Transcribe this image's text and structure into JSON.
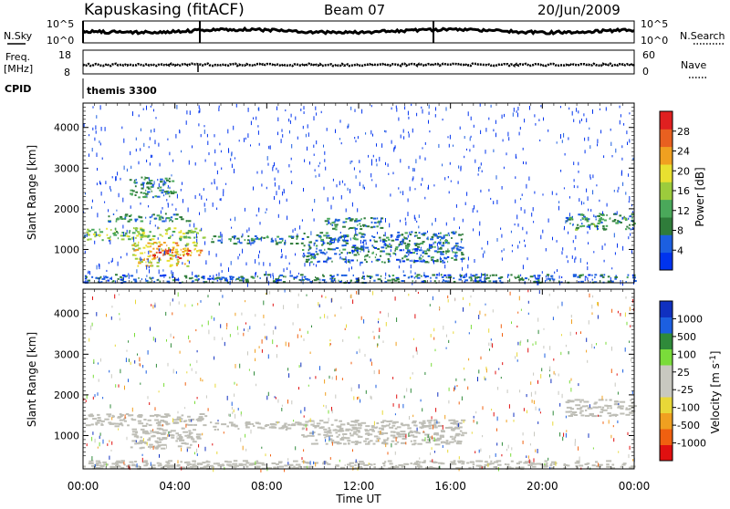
{
  "header": {
    "station": "Kapuskasing (fitACF)",
    "beam": "Beam 07",
    "date": "20/Jun/2009"
  },
  "strip_panels": {
    "nsky_label": "N.Sky",
    "nsky_ticks": [
      "10^5",
      "10^0"
    ],
    "nsearch_label": "N.Search",
    "nsearch_ticks": [
      "10^5",
      "10^0"
    ],
    "freq_label_line1": "Freq.",
    "freq_label_line2": "[MHz]",
    "freq_ticks": [
      "18",
      "8"
    ],
    "nave_label": "Nave",
    "nave_ticks": [
      "60",
      "0"
    ],
    "cpid_label": "CPID",
    "cpid_value": "themis 3300"
  },
  "colors": {
    "power": [
      "#0033ee",
      "#1c5fe0",
      "#2f7c3a",
      "#4aa85a",
      "#9ccc3c",
      "#e8e030",
      "#f0a020",
      "#e86020",
      "#e02020"
    ],
    "velocity": [
      "#e01010",
      "#f06010",
      "#f0a020",
      "#e8d838",
      "#c8c8c0",
      "#c8c8c0",
      "#7adc3a",
      "#2f8a3a",
      "#1c5fe0",
      "#1030c0"
    ],
    "velocity_gray": "#bebeb6"
  },
  "chart_data": [
    {
      "type": "heatmap",
      "title": "Power",
      "ylabel": "Slant Range [km]",
      "xlabel": "Time UT",
      "x_ticks": [
        "00:00",
        "04:00",
        "08:00",
        "12:00",
        "16:00",
        "20:00",
        "00:00"
      ],
      "xlim_hours": [
        0,
        24
      ],
      "y_ticks": [
        "1000",
        "2000",
        "3000",
        "4000"
      ],
      "ylim": [
        180,
        4600
      ],
      "colorbar_label": "Power [dB]",
      "colorbar_ticks": [
        "4",
        "8",
        "12",
        "16",
        "20",
        "24",
        "28"
      ],
      "colorbar_range": [
        0,
        30
      ],
      "regions": [
        {
          "t0": 0.0,
          "t1": 5.3,
          "r0": 1250,
          "r1": 1550,
          "level": 14
        },
        {
          "t0": 1.0,
          "t1": 4.6,
          "r0": 1700,
          "r1": 1900,
          "level": 8
        },
        {
          "t0": 2.0,
          "t1": 5.2,
          "r0": 850,
          "r1": 1200,
          "level": 20
        },
        {
          "t0": 2.2,
          "t1": 4.6,
          "r0": 600,
          "r1": 800,
          "level": 18
        },
        {
          "t0": 3.0,
          "t1": 4.6,
          "r0": 800,
          "r1": 1050,
          "level": 26
        },
        {
          "t0": 2.0,
          "t1": 4.0,
          "r0": 2300,
          "r1": 2800,
          "level": 8
        },
        {
          "t0": 5.5,
          "t1": 9.5,
          "r0": 1150,
          "r1": 1350,
          "level": 8
        },
        {
          "t0": 9.5,
          "t1": 16.5,
          "r0": 700,
          "r1": 1450,
          "level": 6
        },
        {
          "t0": 10.5,
          "t1": 13.0,
          "r0": 1500,
          "r1": 1800,
          "level": 8
        },
        {
          "t0": 0.0,
          "t1": 24.0,
          "r0": 200,
          "r1": 400,
          "level": 5
        },
        {
          "t0": 21.0,
          "t1": 24.0,
          "r0": 1500,
          "r1": 1900,
          "level": 9
        }
      ]
    },
    {
      "type": "heatmap",
      "title": "Velocity",
      "ylabel": "Slant Range [km]",
      "xlabel": "Time UT",
      "x_ticks": [
        "00:00",
        "04:00",
        "08:00",
        "12:00",
        "16:00",
        "20:00",
        "00:00"
      ],
      "xlim_hours": [
        0,
        24
      ],
      "y_ticks": [
        "1000",
        "2000",
        "3000",
        "4000"
      ],
      "ylim": [
        180,
        4600
      ],
      "colorbar_label": "Velocity [m s^-1]",
      "colorbar_ticks": [
        "1000",
        "500",
        "100",
        "25",
        "-25",
        "-100",
        "-500",
        "-1000"
      ],
      "regions": [
        {
          "t0": 0.0,
          "t1": 5.3,
          "r0": 1250,
          "r1": 1550,
          "kind": "gray"
        },
        {
          "t0": 2.0,
          "t1": 5.0,
          "r0": 700,
          "r1": 1200,
          "kind": "gray"
        },
        {
          "t0": 5.5,
          "t1": 9.5,
          "r0": 1150,
          "r1": 1350,
          "kind": "gray"
        },
        {
          "t0": 9.5,
          "t1": 16.5,
          "r0": 800,
          "r1": 1400,
          "kind": "gray"
        },
        {
          "t0": 0.0,
          "t1": 24.0,
          "r0": 200,
          "r1": 400,
          "kind": "gray"
        },
        {
          "t0": 21.0,
          "t1": 24.0,
          "r0": 1500,
          "r1": 1900,
          "kind": "gray"
        }
      ]
    }
  ],
  "footer": {
    "time_label": "Time UT"
  }
}
